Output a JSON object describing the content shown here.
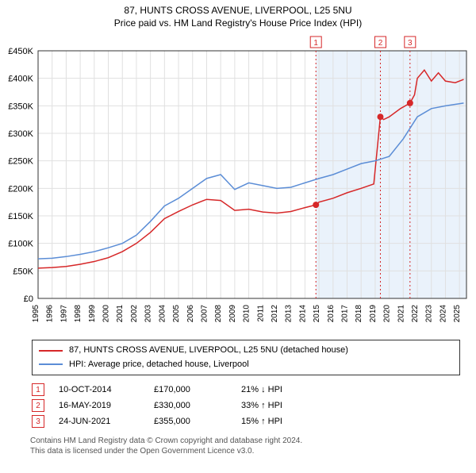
{
  "chart": {
    "title_main": "87, HUNTS CROSS AVENUE, LIVERPOOL, L25 5NU",
    "title_sub": "Price paid vs. HM Land Registry's House Price Index (HPI)",
    "yaxis": {
      "min": 0,
      "max": 450000,
      "tick_step": 50000,
      "tick_labels": [
        "£0",
        "£50K",
        "£100K",
        "£150K",
        "£200K",
        "£250K",
        "£300K",
        "£350K",
        "£400K",
        "£450K"
      ]
    },
    "xaxis": {
      "min": 1995,
      "max": 2025.5,
      "ticks": [
        1995,
        1996,
        1997,
        1998,
        1999,
        2000,
        2001,
        2002,
        2003,
        2004,
        2005,
        2006,
        2007,
        2008,
        2009,
        2010,
        2011,
        2012,
        2013,
        2014,
        2015,
        2016,
        2017,
        2018,
        2019,
        2020,
        2021,
        2022,
        2023,
        2024,
        2025
      ],
      "tick_labels": [
        "1995",
        "1996",
        "1997",
        "1998",
        "1999",
        "2000",
        "2001",
        "2002",
        "2003",
        "2004",
        "2005",
        "2006",
        "2007",
        "2008",
        "2009",
        "2010",
        "2011",
        "2012",
        "2013",
        "2014",
        "2015",
        "2016",
        "2017",
        "2018",
        "2019",
        "2020",
        "2021",
        "2022",
        "2023",
        "2024",
        "2025"
      ]
    },
    "background_color": "#ffffff",
    "grid_color": "#e0e0e0",
    "axis_color": "#333333",
    "shade_band": {
      "start": 2014.78,
      "end": 2025.5,
      "color": "#eaf2fb"
    },
    "series": [
      {
        "name": "property",
        "label": "87, HUNTS CROSS AVENUE, LIVERPOOL, L25 5NU (detached house)",
        "color": "#d62728",
        "line_width": 1.5,
        "points": [
          [
            1995,
            55000
          ],
          [
            1996,
            56000
          ],
          [
            1997,
            58000
          ],
          [
            1998,
            62000
          ],
          [
            1999,
            67000
          ],
          [
            2000,
            74000
          ],
          [
            2001,
            85000
          ],
          [
            2002,
            100000
          ],
          [
            2003,
            120000
          ],
          [
            2004,
            145000
          ],
          [
            2005,
            158000
          ],
          [
            2006,
            170000
          ],
          [
            2007,
            180000
          ],
          [
            2008,
            178000
          ],
          [
            2009,
            160000
          ],
          [
            2010,
            162000
          ],
          [
            2011,
            157000
          ],
          [
            2012,
            155000
          ],
          [
            2013,
            158000
          ],
          [
            2014,
            165000
          ],
          [
            2014.78,
            170000
          ],
          [
            2015,
            175000
          ],
          [
            2016,
            182000
          ],
          [
            2017,
            192000
          ],
          [
            2018,
            200000
          ],
          [
            2018.9,
            208000
          ],
          [
            2019.37,
            330000
          ],
          [
            2019.6,
            325000
          ],
          [
            2020,
            330000
          ],
          [
            2020.8,
            345000
          ],
          [
            2021.48,
            355000
          ],
          [
            2021.8,
            370000
          ],
          [
            2022,
            400000
          ],
          [
            2022.5,
            415000
          ],
          [
            2023,
            395000
          ],
          [
            2023.5,
            410000
          ],
          [
            2024,
            395000
          ],
          [
            2024.7,
            392000
          ],
          [
            2025.3,
            398000
          ]
        ]
      },
      {
        "name": "hpi",
        "label": "HPI: Average price, detached house, Liverpool",
        "color": "#5b8dd6",
        "line_width": 1.5,
        "points": [
          [
            1995,
            72000
          ],
          [
            1996,
            73000
          ],
          [
            1997,
            76000
          ],
          [
            1998,
            80000
          ],
          [
            1999,
            85000
          ],
          [
            2000,
            92000
          ],
          [
            2001,
            100000
          ],
          [
            2002,
            115000
          ],
          [
            2003,
            140000
          ],
          [
            2004,
            168000
          ],
          [
            2005,
            182000
          ],
          [
            2006,
            200000
          ],
          [
            2007,
            218000
          ],
          [
            2008,
            225000
          ],
          [
            2009,
            198000
          ],
          [
            2010,
            210000
          ],
          [
            2011,
            205000
          ],
          [
            2012,
            200000
          ],
          [
            2013,
            202000
          ],
          [
            2014,
            210000
          ],
          [
            2015,
            218000
          ],
          [
            2016,
            225000
          ],
          [
            2017,
            235000
          ],
          [
            2018,
            245000
          ],
          [
            2019,
            250000
          ],
          [
            2020,
            258000
          ],
          [
            2021,
            290000
          ],
          [
            2022,
            330000
          ],
          [
            2023,
            345000
          ],
          [
            2024,
            350000
          ],
          [
            2025.3,
            355000
          ]
        ]
      }
    ],
    "event_markers": [
      {
        "num": "1",
        "year": 2014.78,
        "color": "#d62728"
      },
      {
        "num": "2",
        "year": 2019.37,
        "color": "#d62728"
      },
      {
        "num": "3",
        "year": 2021.48,
        "color": "#d62728"
      }
    ],
    "sale_points": [
      {
        "year": 2014.78,
        "price": 170000,
        "color": "#d62728"
      },
      {
        "year": 2019.37,
        "price": 330000,
        "color": "#d62728"
      },
      {
        "year": 2021.48,
        "price": 355000,
        "color": "#d62728"
      }
    ]
  },
  "legend": {
    "items": [
      {
        "color": "#d62728",
        "label": "87, HUNTS CROSS AVENUE, LIVERPOOL, L25 5NU (detached house)"
      },
      {
        "color": "#5b8dd6",
        "label": "HPI: Average price, detached house, Liverpool"
      }
    ]
  },
  "events": [
    {
      "num": "1",
      "date": "10-OCT-2014",
      "price": "£170,000",
      "pct": "21% ↓ HPI",
      "color": "#d62728"
    },
    {
      "num": "2",
      "date": "16-MAY-2019",
      "price": "£330,000",
      "pct": "33% ↑ HPI",
      "color": "#d62728"
    },
    {
      "num": "3",
      "date": "24-JUN-2021",
      "price": "£355,000",
      "pct": "15% ↑ HPI",
      "color": "#d62728"
    }
  ],
  "attribution": {
    "line1": "Contains HM Land Registry data © Crown copyright and database right 2024.",
    "line2": "This data is licensed under the Open Government Licence v3.0."
  }
}
